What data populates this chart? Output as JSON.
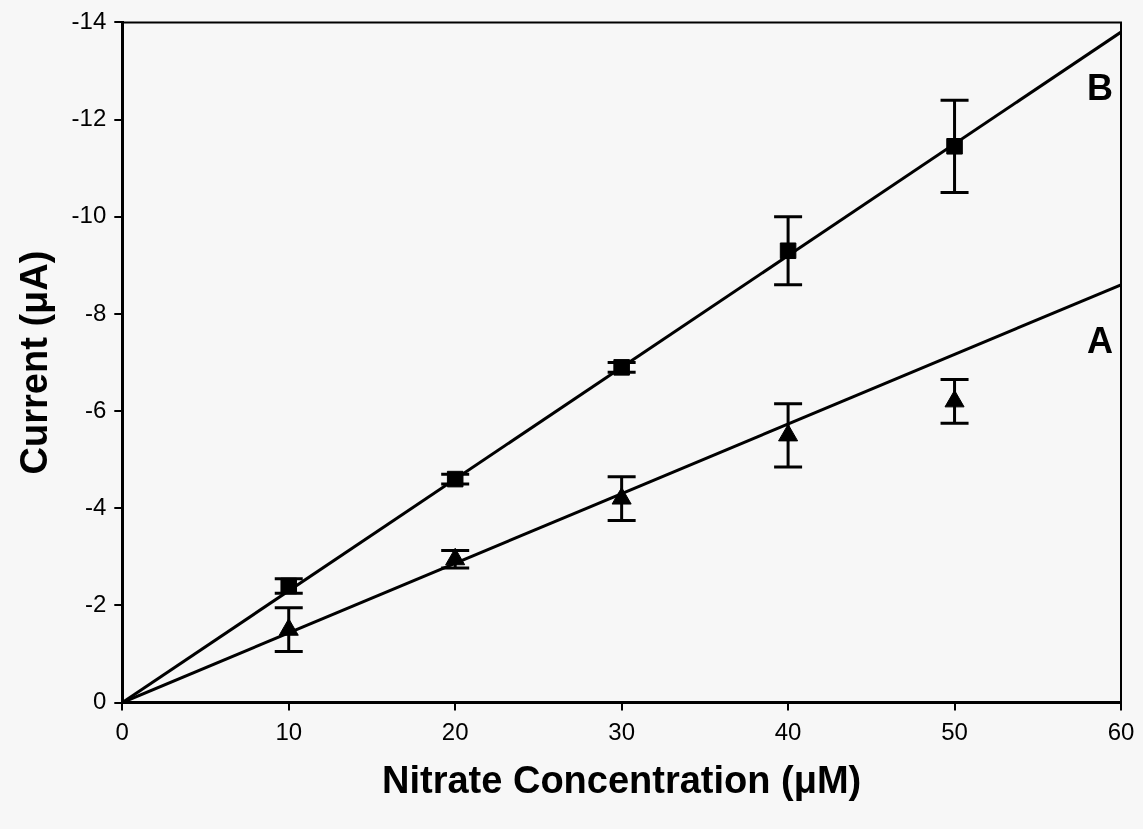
{
  "chart_data": {
    "type": "scatter",
    "xlabel": "Nitrate Concentration (μM)",
    "ylabel": "Current (μA)",
    "xlim": [
      0,
      60
    ],
    "xticks": [
      0,
      10,
      20,
      30,
      40,
      50,
      60
    ],
    "ylim": [
      0,
      -14
    ],
    "yticks": [
      0,
      -2,
      -4,
      -6,
      -8,
      -10,
      -12,
      -14
    ],
    "grid": false,
    "legend": false,
    "series": [
      {
        "marker": "square",
        "color": "#000000",
        "x": [
          10,
          20,
          30,
          40,
          50
        ],
        "values": [
          -2.4,
          -4.6,
          -6.9,
          -9.3,
          -11.45
        ],
        "errors": [
          0.15,
          0.1,
          0.1,
          0.7,
          0.95
        ]
      },
      {
        "marker": "triangle",
        "color": "#000000",
        "x": [
          10,
          20,
          30,
          40,
          50
        ],
        "values": [
          -1.5,
          -2.95,
          -4.2,
          -5.5,
          -6.2
        ],
        "errors": [
          0.45,
          0.18,
          0.45,
          0.65,
          0.45
        ]
      },
      {
        "type": "line",
        "name": "B",
        "color": "#000000",
        "marker": "none",
        "line_style": "solid",
        "x": [
          0,
          60
        ],
        "values": [
          0,
          -13.8
        ]
      },
      {
        "type": "line",
        "name": "A",
        "color": "#000000",
        "marker": "none",
        "line_style": "solid",
        "x": [
          0,
          60
        ],
        "values": [
          0,
          -8.6
        ]
      }
    ]
  }
}
